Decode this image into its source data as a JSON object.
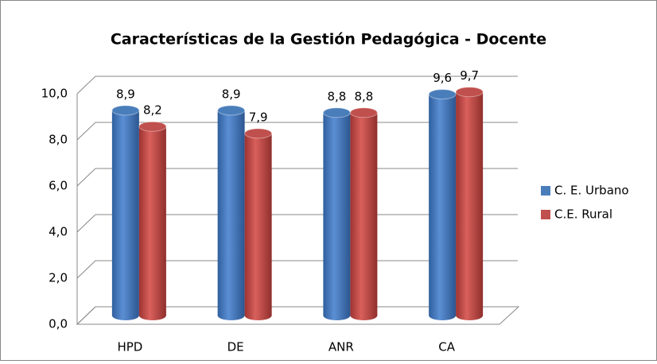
{
  "chart_data": {
    "type": "bar3d",
    "title": "Características de la Gestión Pedagógica - Docente",
    "categories": [
      "HPD",
      "DE",
      "ANR",
      "CA"
    ],
    "series": [
      {
        "name": "C. E. Urbano",
        "color": "#4a7ebb",
        "values": [
          8.9,
          8.9,
          8.8,
          9.6
        ],
        "value_labels": [
          "8,9",
          "8,9",
          "8,8",
          "9,6"
        ]
      },
      {
        "name": "C.E. Rural",
        "color": "#c0504d",
        "values": [
          8.2,
          7.9,
          8.8,
          9.7
        ],
        "value_labels": [
          "8,2",
          "7,9",
          "8,8",
          "9,7"
        ]
      }
    ],
    "ylim": [
      0,
      10
    ],
    "yticks": [
      {
        "value": 0,
        "label": "0,0"
      },
      {
        "value": 2,
        "label": "2,0"
      },
      {
        "value": 4,
        "label": "4,0"
      },
      {
        "value": 6,
        "label": "6,0"
      },
      {
        "value": 8,
        "label": "8,0"
      },
      {
        "value": 10,
        "label": "10,0"
      }
    ],
    "grid": true,
    "legend": "right"
  }
}
